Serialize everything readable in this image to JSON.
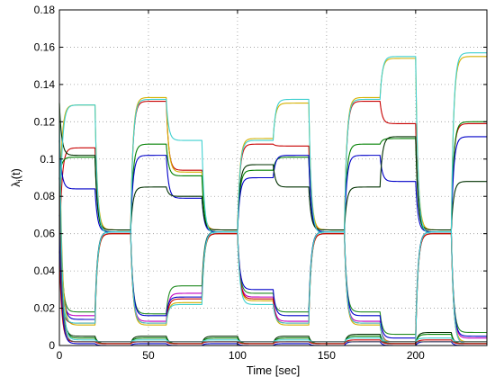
{
  "chart_data": {
    "type": "line",
    "title": "",
    "xlabel": "Time [sec]",
    "ylabel": "λ_i(t)",
    "ylabel_main": "λ",
    "ylabel_sub": "i",
    "ylabel_tail": "(t)",
    "xlim": [
      0,
      240
    ],
    "ylim": [
      0,
      0.18
    ],
    "xticks": [
      0,
      50,
      100,
      150,
      200
    ],
    "xtick_labels": [
      "0",
      "50",
      "100",
      "150",
      "200"
    ],
    "yticks": [
      0,
      0.02,
      0.04,
      0.06,
      0.08,
      0.1,
      0.12,
      0.14,
      0.16,
      0.18
    ],
    "ytick_labels": [
      "0",
      "0.02",
      "0.04",
      "0.06",
      "0.08",
      "0.1",
      "0.12",
      "0.14",
      "0.16",
      "0.18"
    ],
    "grid": true,
    "grid_style": "dotted",
    "segment_times": [
      0,
      20,
      40,
      60,
      80,
      100,
      120,
      140,
      160,
      180,
      200,
      220,
      240
    ],
    "series": [
      {
        "color": "#c80000",
        "levels": [
          0.106,
          0.062,
          0.131,
          0.094,
          0.062,
          0.108,
          0.107,
          0.062,
          0.131,
          0.119,
          0.061,
          0.119
        ]
      },
      {
        "color": "#d4b000",
        "levels": [
          0.129,
          0.062,
          0.133,
          0.093,
          0.062,
          0.111,
          0.13,
          0.062,
          0.133,
          0.154,
          0.062,
          0.155
        ]
      },
      {
        "color": "#008000",
        "levels": [
          0.101,
          0.061,
          0.108,
          0.091,
          0.061,
          0.094,
          0.101,
          0.061,
          0.108,
          0.111,
          0.061,
          0.12
        ]
      },
      {
        "color": "#0000c8",
        "levels": [
          0.084,
          0.061,
          0.102,
          0.079,
          0.061,
          0.09,
          0.102,
          0.061,
          0.102,
          0.088,
          0.061,
          0.112
        ]
      },
      {
        "color": "#003000",
        "levels": [
          0.102,
          0.062,
          0.085,
          0.08,
          0.062,
          0.097,
          0.085,
          0.062,
          0.085,
          0.112,
          0.062,
          0.088
        ]
      },
      {
        "color": "#40d0d0",
        "levels": [
          0.129,
          0.06,
          0.132,
          0.11,
          0.06,
          0.11,
          0.132,
          0.06,
          0.132,
          0.155,
          0.06,
          0.157
        ]
      },
      {
        "color": "#c000c0",
        "levels": [
          0.016,
          0.06,
          0.013,
          0.028,
          0.06,
          0.026,
          0.013,
          0.06,
          0.013,
          0.002,
          0.06,
          0.004
        ]
      },
      {
        "color": "#228b22",
        "levels": [
          0.018,
          0.061,
          0.017,
          0.032,
          0.061,
          0.028,
          0.018,
          0.061,
          0.018,
          0.006,
          0.061,
          0.007
        ]
      },
      {
        "color": "#0000c8",
        "levels": [
          0.014,
          0.061,
          0.016,
          0.026,
          0.061,
          0.03,
          0.016,
          0.061,
          0.016,
          0.004,
          0.061,
          0.005
        ]
      },
      {
        "color": "#d4b000",
        "levels": [
          0.011,
          0.06,
          0.011,
          0.023,
          0.06,
          0.024,
          0.011,
          0.06,
          0.011,
          0.002,
          0.06,
          0.002
        ]
      },
      {
        "color": "#c80000",
        "levels": [
          0.012,
          0.06,
          0.012,
          0.025,
          0.06,
          0.025,
          0.012,
          0.06,
          0.012,
          0.001,
          0.06,
          0.001
        ]
      },
      {
        "color": "#40d0d0",
        "levels": [
          0.012,
          0.061,
          0.012,
          0.022,
          0.061,
          0.022,
          0.012,
          0.061,
          0.012,
          0.001,
          0.061,
          0.001
        ]
      },
      {
        "color": "#003000",
        "levels": [
          0.005,
          0.001,
          0.005,
          0.001,
          0.005,
          0.001,
          0.005,
          0.001,
          0.006,
          0.001,
          0.007,
          0.001
        ]
      },
      {
        "color": "#008000",
        "levels": [
          0.004,
          0.001,
          0.004,
          0.001,
          0.004,
          0.001,
          0.004,
          0.001,
          0.005,
          0.001,
          0.006,
          0.001
        ]
      },
      {
        "color": "#40d0d0",
        "levels": [
          0.003,
          0.002,
          0.003,
          0.002,
          0.003,
          0.002,
          0.003,
          0.002,
          0.004,
          0.002,
          0.004,
          0.002
        ]
      },
      {
        "color": "#c80000",
        "levels": [
          0.002,
          0.001,
          0.002,
          0.001,
          0.002,
          0.001,
          0.002,
          0.001,
          0.003,
          0.001,
          0.003,
          0.001
        ]
      },
      {
        "color": "#0000c8",
        "levels": [
          0.001,
          0.0,
          0.001,
          0.0,
          0.001,
          0.0,
          0.001,
          0.0,
          0.002,
          0.0,
          0.002,
          0.0
        ]
      },
      {
        "color": "#606060",
        "levels": [
          0.002,
          0.002,
          0.002,
          0.002,
          0.002,
          0.002,
          0.002,
          0.002,
          0.002,
          0.002,
          0.002,
          0.002
        ]
      }
    ]
  }
}
